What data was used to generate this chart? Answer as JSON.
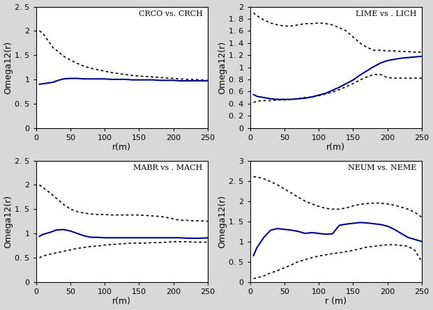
{
  "subplots": [
    {
      "title": "CRCO vs. CRCH",
      "ylim": [
        0,
        2.5
      ],
      "yticks": [
        0,
        0.5,
        1.0,
        1.5,
        2.0,
        2.5
      ],
      "xlim": [
        0,
        250
      ],
      "xticks": [
        0,
        50,
        100,
        150,
        200,
        250
      ],
      "ylabel": "Omega12(r)",
      "xlabel": "r(m)",
      "solid_color": "#00008B",
      "dashed_color": "#111111",
      "solid": {
        "x": [
          5,
          10,
          15,
          20,
          25,
          30,
          35,
          40,
          50,
          60,
          70,
          80,
          90,
          100,
          110,
          120,
          130,
          140,
          150,
          160,
          170,
          180,
          190,
          200,
          210,
          220,
          230,
          240,
          250
        ],
        "y": [
          0.9,
          0.91,
          0.92,
          0.93,
          0.94,
          0.97,
          0.99,
          1.01,
          1.02,
          1.02,
          1.01,
          1.01,
          1.01,
          1.01,
          1.0,
          1.0,
          1.0,
          0.99,
          0.99,
          0.99,
          0.99,
          0.98,
          0.98,
          0.98,
          0.97,
          0.97,
          0.97,
          0.97,
          0.97
        ]
      },
      "dashed_upper": {
        "x": [
          5,
          10,
          15,
          20,
          25,
          30,
          35,
          40,
          50,
          60,
          70,
          80,
          90,
          100,
          110,
          120,
          130,
          140,
          150,
          160,
          170,
          180,
          190,
          200,
          210,
          220,
          230,
          240,
          250
        ],
        "y": [
          2.0,
          1.95,
          1.85,
          1.75,
          1.65,
          1.6,
          1.54,
          1.48,
          1.4,
          1.33,
          1.27,
          1.23,
          1.2,
          1.17,
          1.14,
          1.12,
          1.1,
          1.08,
          1.07,
          1.06,
          1.05,
          1.04,
          1.03,
          1.02,
          1.01,
          1.0,
          1.0,
          0.99,
          0.98
        ]
      },
      "has_lower_dashed": false
    },
    {
      "title": "LIME vs . LICH",
      "ylim": [
        0,
        2.0
      ],
      "yticks": [
        0,
        0.2,
        0.4,
        0.6,
        0.8,
        1.0,
        1.2,
        1.4,
        1.6,
        1.8,
        2.0
      ],
      "xlim": [
        0,
        250
      ],
      "xticks": [
        0,
        50,
        100,
        150,
        200,
        250
      ],
      "ylabel": "Omega12(r)",
      "xlabel": "r(m)",
      "solid_color": "#00008B",
      "dashed_color": "#111111",
      "solid": {
        "x": [
          5,
          10,
          20,
          30,
          40,
          50,
          60,
          70,
          80,
          90,
          100,
          110,
          120,
          130,
          140,
          150,
          160,
          170,
          180,
          190,
          200,
          210,
          220,
          230,
          240,
          250
        ],
        "y": [
          0.55,
          0.52,
          0.5,
          0.48,
          0.47,
          0.47,
          0.47,
          0.48,
          0.49,
          0.51,
          0.54,
          0.57,
          0.62,
          0.67,
          0.73,
          0.79,
          0.87,
          0.94,
          1.01,
          1.07,
          1.11,
          1.13,
          1.15,
          1.16,
          1.17,
          1.18
        ]
      },
      "dashed_upper": {
        "x": [
          5,
          10,
          20,
          30,
          40,
          50,
          60,
          70,
          80,
          90,
          100,
          110,
          120,
          130,
          140,
          150,
          160,
          170,
          180,
          190,
          200,
          210,
          220,
          230,
          240,
          250
        ],
        "y": [
          1.9,
          1.85,
          1.78,
          1.73,
          1.7,
          1.68,
          1.68,
          1.7,
          1.72,
          1.72,
          1.73,
          1.72,
          1.7,
          1.65,
          1.6,
          1.5,
          1.4,
          1.33,
          1.28,
          1.28,
          1.27,
          1.27,
          1.26,
          1.26,
          1.25,
          1.25
        ]
      },
      "dashed_lower": {
        "x": [
          5,
          10,
          20,
          30,
          40,
          50,
          60,
          70,
          80,
          90,
          100,
          110,
          120,
          130,
          140,
          150,
          160,
          170,
          180,
          190,
          200,
          210,
          220,
          230,
          240,
          250
        ],
        "y": [
          0.42,
          0.44,
          0.45,
          0.45,
          0.46,
          0.46,
          0.47,
          0.48,
          0.5,
          0.51,
          0.53,
          0.56,
          0.59,
          0.63,
          0.68,
          0.73,
          0.79,
          0.84,
          0.88,
          0.88,
          0.83,
          0.82,
          0.82,
          0.82,
          0.82,
          0.82
        ]
      },
      "has_lower_dashed": true
    },
    {
      "title": "MABR vs . MACH",
      "ylim": [
        0,
        2.5
      ],
      "yticks": [
        0,
        0.5,
        1.0,
        1.5,
        2.0,
        2.5
      ],
      "xlim": [
        0,
        250
      ],
      "xticks": [
        0,
        50,
        100,
        150,
        200,
        250
      ],
      "ylabel": "Omega12(r)",
      "xlabel": "r(m)",
      "solid_color": "#00008B",
      "dashed_color": "#111111",
      "solid": {
        "x": [
          5,
          10,
          20,
          30,
          40,
          50,
          60,
          70,
          80,
          90,
          100,
          110,
          120,
          130,
          140,
          150,
          160,
          170,
          180,
          190,
          200,
          210,
          220,
          230,
          240,
          250
        ],
        "y": [
          0.94,
          0.98,
          1.02,
          1.07,
          1.08,
          1.05,
          1.0,
          0.95,
          0.92,
          0.92,
          0.91,
          0.91,
          0.91,
          0.91,
          0.91,
          0.91,
          0.91,
          0.91,
          0.91,
          0.91,
          0.91,
          0.91,
          0.9,
          0.9,
          0.9,
          0.91
        ]
      },
      "dashed_upper": {
        "x": [
          5,
          10,
          20,
          30,
          40,
          50,
          60,
          70,
          80,
          90,
          100,
          110,
          120,
          130,
          140,
          150,
          160,
          170,
          180,
          190,
          200,
          210,
          220,
          230,
          240,
          250
        ],
        "y": [
          2.0,
          1.95,
          1.84,
          1.72,
          1.6,
          1.5,
          1.45,
          1.42,
          1.4,
          1.39,
          1.39,
          1.38,
          1.38,
          1.38,
          1.38,
          1.38,
          1.37,
          1.36,
          1.35,
          1.33,
          1.3,
          1.27,
          1.27,
          1.26,
          1.26,
          1.25
        ]
      },
      "dashed_lower": {
        "x": [
          5,
          10,
          20,
          30,
          40,
          50,
          60,
          70,
          80,
          90,
          100,
          110,
          120,
          130,
          140,
          150,
          160,
          170,
          180,
          190,
          200,
          210,
          220,
          230,
          240,
          250
        ],
        "y": [
          0.5,
          0.53,
          0.57,
          0.6,
          0.63,
          0.66,
          0.69,
          0.71,
          0.73,
          0.74,
          0.76,
          0.77,
          0.78,
          0.79,
          0.8,
          0.8,
          0.8,
          0.81,
          0.81,
          0.82,
          0.83,
          0.83,
          0.83,
          0.82,
          0.82,
          0.82
        ]
      },
      "has_lower_dashed": true
    },
    {
      "title": "NEUM vs. NEME",
      "ylim": [
        0,
        3.0
      ],
      "yticks": [
        0,
        0.5,
        1.0,
        1.5,
        2.0,
        2.5,
        3.0
      ],
      "xlim": [
        0,
        250
      ],
      "xticks": [
        0,
        50,
        100,
        150,
        200,
        250
      ],
      "ylabel": "Omega12(r)",
      "xlabel": "r (m)",
      "solid_color": "#00008B",
      "dashed_color": "#111111",
      "solid": {
        "x": [
          5,
          10,
          20,
          30,
          40,
          50,
          60,
          70,
          80,
          90,
          100,
          110,
          120,
          130,
          140,
          150,
          160,
          170,
          180,
          190,
          200,
          210,
          220,
          230,
          240,
          250
        ],
        "y": [
          0.65,
          0.85,
          1.1,
          1.28,
          1.32,
          1.3,
          1.28,
          1.25,
          1.2,
          1.22,
          1.2,
          1.18,
          1.19,
          1.4,
          1.43,
          1.45,
          1.47,
          1.46,
          1.44,
          1.42,
          1.38,
          1.3,
          1.2,
          1.1,
          1.05,
          1.0
        ]
      },
      "dashed_upper": {
        "x": [
          5,
          10,
          20,
          30,
          40,
          50,
          60,
          70,
          80,
          90,
          100,
          110,
          120,
          130,
          140,
          150,
          160,
          170,
          180,
          190,
          200,
          210,
          220,
          230,
          240,
          250
        ],
        "y": [
          2.6,
          2.6,
          2.55,
          2.48,
          2.4,
          2.3,
          2.2,
          2.1,
          2.0,
          1.93,
          1.87,
          1.82,
          1.8,
          1.8,
          1.83,
          1.88,
          1.92,
          1.94,
          1.95,
          1.95,
          1.93,
          1.9,
          1.85,
          1.8,
          1.72,
          1.6
        ]
      },
      "dashed_lower": {
        "x": [
          5,
          10,
          20,
          30,
          40,
          50,
          60,
          70,
          80,
          90,
          100,
          110,
          120,
          130,
          140,
          150,
          160,
          170,
          180,
          190,
          200,
          210,
          220,
          230,
          240,
          250
        ],
        "y": [
          0.08,
          0.1,
          0.15,
          0.22,
          0.28,
          0.35,
          0.42,
          0.5,
          0.55,
          0.6,
          0.64,
          0.67,
          0.7,
          0.72,
          0.75,
          0.78,
          0.82,
          0.86,
          0.88,
          0.9,
          0.92,
          0.92,
          0.9,
          0.88,
          0.78,
          0.5
        ]
      },
      "has_lower_dashed": true
    }
  ],
  "fig_width": 6.21,
  "fig_height": 4.45,
  "dpi": 100,
  "background_color": "#d8d8d8"
}
